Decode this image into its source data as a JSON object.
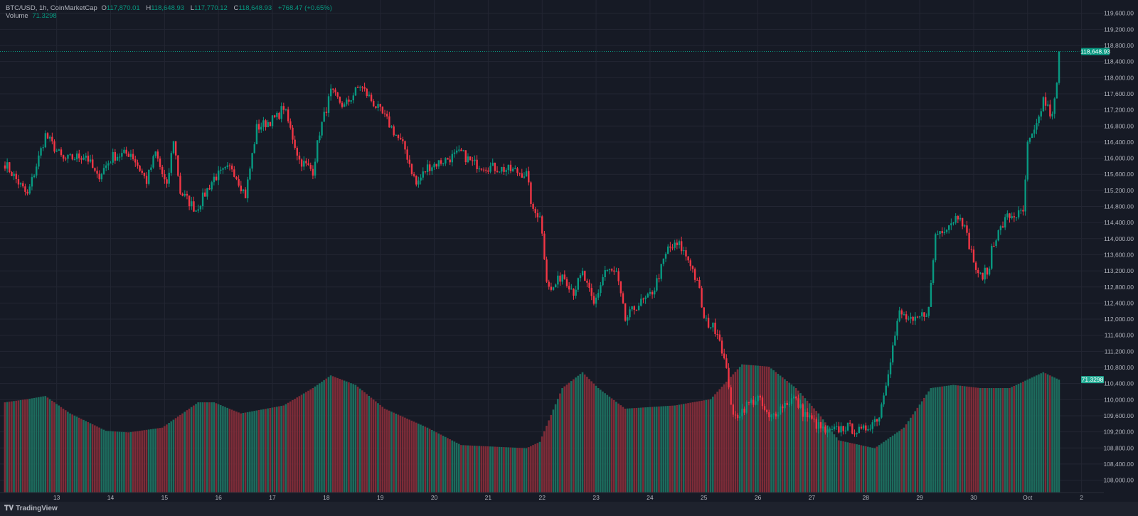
{
  "legend": {
    "symbol": "BTC/USD, 1h, CoinMarketCap",
    "o_label": "O",
    "o": "117,870.01",
    "h_label": "H",
    "h": "118,648.93",
    "l_label": "L",
    "l": "117,770.12",
    "c_label": "C",
    "c": "118,648.93",
    "change": "+768.47 (+0.65%)",
    "volume_label": "Volume",
    "volume": "71.3298"
  },
  "footer": {
    "logo_text": "TradingView"
  },
  "colors": {
    "up": "#089981",
    "down": "#f23645",
    "background": "#161a25",
    "grid": "#232633"
  },
  "chart_data": {
    "type": "candlestick",
    "title": "BTC/USD, 1h, CoinMarketCap",
    "interval": "1h",
    "candle_count": 470,
    "last_price": 118648.93,
    "last_price_label": "118,648.93",
    "last_open": 117870.01,
    "last_volume_label": "71.3298",
    "last_volume": 71.3298,
    "ylim": [
      107800,
      119900
    ],
    "y_ticks": [
      "119,600.00",
      "119,200.00",
      "118,800.00",
      "118,400.00",
      "118,000.00",
      "117,600.00",
      "117,200.00",
      "116,800.00",
      "116,400.00",
      "116,000.00",
      "115,600.00",
      "115,200.00",
      "114,800.00",
      "114,400.00",
      "114,000.00",
      "113,600.00",
      "113,200.00",
      "112,800.00",
      "112,400.00",
      "112,000.00",
      "111,600.00",
      "111,200.00",
      "110,800.00",
      "110,400.00",
      "110,000.00",
      "109,600.00",
      "109,200.00",
      "108,800.00",
      "108,400.00",
      "108,000.00"
    ],
    "y_tick_values": [
      119600,
      119200,
      118800,
      118400,
      118000,
      117600,
      117200,
      116800,
      116400,
      116000,
      115600,
      115200,
      114800,
      114400,
      114000,
      113600,
      113200,
      112800,
      112400,
      112000,
      111600,
      111200,
      110800,
      110400,
      110000,
      109600,
      109200,
      108800,
      108400,
      108000
    ],
    "x_ticks": [
      "13",
      "14",
      "15",
      "16",
      "17",
      "18",
      "19",
      "20",
      "21",
      "22",
      "23",
      "24",
      "25",
      "26",
      "27",
      "28",
      "29",
      "30",
      "Oct",
      "2"
    ],
    "x_tick_hour_index": [
      23,
      47,
      71,
      95,
      119,
      143,
      167,
      191,
      215,
      239,
      263,
      287,
      311,
      335,
      359,
      383,
      407,
      431,
      455,
      479
    ],
    "close_path": [
      [
        0,
        115870
      ],
      [
        10,
        115073
      ],
      [
        18,
        116575
      ],
      [
        26,
        115950
      ],
      [
        36,
        116080
      ],
      [
        41,
        115515
      ],
      [
        48,
        116045
      ],
      [
        56,
        116130
      ],
      [
        63,
        115430
      ],
      [
        67,
        116130
      ],
      [
        72,
        115250
      ],
      [
        75,
        116487
      ],
      [
        78,
        115160
      ],
      [
        85,
        114720
      ],
      [
        93,
        115515
      ],
      [
        101,
        115780
      ],
      [
        107,
        115073
      ],
      [
        112,
        116750
      ],
      [
        121,
        117015
      ],
      [
        124,
        117280
      ],
      [
        131,
        115950
      ],
      [
        137,
        115690
      ],
      [
        140,
        116660
      ],
      [
        145,
        117635
      ],
      [
        151,
        117280
      ],
      [
        158,
        117810
      ],
      [
        164,
        117370
      ],
      [
        170,
        116930
      ],
      [
        178,
        116220
      ],
      [
        183,
        115340
      ],
      [
        188,
        115780
      ],
      [
        196,
        115960
      ],
      [
        203,
        116130
      ],
      [
        208,
        115870
      ],
      [
        216,
        115780
      ],
      [
        226,
        115690
      ],
      [
        232,
        115600
      ],
      [
        235,
        114630
      ],
      [
        238,
        114630
      ],
      [
        241,
        113040
      ],
      [
        243,
        112690
      ],
      [
        248,
        113130
      ],
      [
        253,
        112690
      ],
      [
        257,
        113130
      ],
      [
        262,
        112340
      ],
      [
        267,
        113220
      ],
      [
        272,
        113130
      ],
      [
        276,
        111980
      ],
      [
        281,
        112340
      ],
      [
        286,
        112510
      ],
      [
        289,
        112780
      ],
      [
        295,
        113750
      ],
      [
        300,
        113840
      ],
      [
        305,
        113400
      ],
      [
        309,
        112690
      ],
      [
        311,
        111980
      ],
      [
        317,
        111715
      ],
      [
        319,
        111270
      ],
      [
        322,
        110390
      ],
      [
        324,
        109510
      ],
      [
        330,
        109860
      ],
      [
        335,
        110040
      ],
      [
        340,
        109510
      ],
      [
        346,
        109860
      ],
      [
        351,
        110040
      ],
      [
        355,
        109690
      ],
      [
        362,
        109330
      ],
      [
        366,
        109160
      ],
      [
        374,
        109330
      ],
      [
        381,
        109190
      ],
      [
        389,
        109600
      ],
      [
        393,
        110750
      ],
      [
        398,
        112160
      ],
      [
        404,
        111890
      ],
      [
        411,
        112245
      ],
      [
        414,
        114100
      ],
      [
        420,
        114370
      ],
      [
        425,
        114630
      ],
      [
        430,
        113660
      ],
      [
        433,
        113040
      ],
      [
        438,
        113220
      ],
      [
        439,
        113840
      ],
      [
        446,
        114545
      ],
      [
        453,
        114630
      ],
      [
        455,
        116310
      ],
      [
        459,
        116750
      ],
      [
        462,
        117460
      ],
      [
        466,
        117015
      ],
      [
        468,
        117870.01
      ],
      [
        469,
        118648.93
      ]
    ],
    "volume_path": [
      [
        0,
        57
      ],
      [
        10,
        59
      ],
      [
        18,
        61
      ],
      [
        29,
        50
      ],
      [
        45,
        39
      ],
      [
        55,
        38
      ],
      [
        70,
        41
      ],
      [
        86,
        57
      ],
      [
        93,
        57
      ],
      [
        105,
        50
      ],
      [
        124,
        55
      ],
      [
        137,
        66
      ],
      [
        145,
        74
      ],
      [
        156,
        68
      ],
      [
        169,
        53
      ],
      [
        188,
        41
      ],
      [
        203,
        30
      ],
      [
        232,
        28
      ],
      [
        238,
        32
      ],
      [
        248,
        66
      ],
      [
        257,
        76
      ],
      [
        264,
        66
      ],
      [
        276,
        53
      ],
      [
        298,
        55
      ],
      [
        314,
        59
      ],
      [
        328,
        81
      ],
      [
        340,
        79.5
      ],
      [
        352,
        66
      ],
      [
        362,
        50
      ],
      [
        371,
        33
      ],
      [
        387,
        28
      ],
      [
        400,
        41
      ],
      [
        412,
        66
      ],
      [
        422,
        68
      ],
      [
        434,
        66
      ],
      [
        447,
        66
      ],
      [
        462,
        76
      ],
      [
        469,
        71.3298
      ]
    ]
  }
}
